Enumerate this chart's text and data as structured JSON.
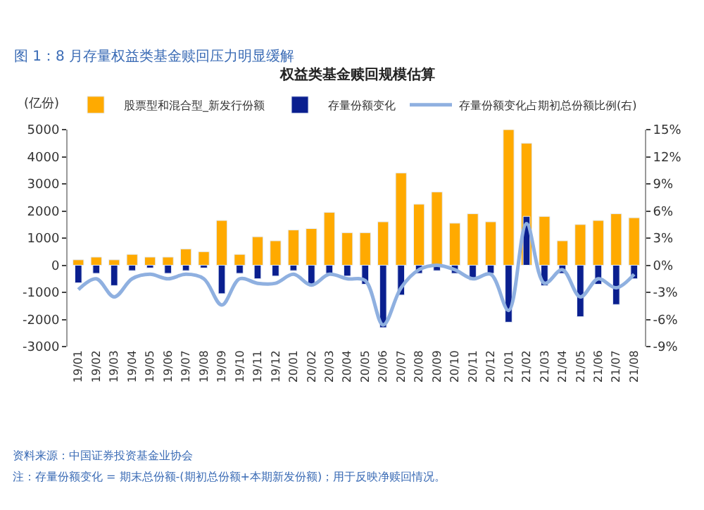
{
  "chart_data": {
    "type": "bar",
    "title": "图 1：8 月存量权益类基金赎回压力明显缓解",
    "subtitle": "权益类基金赎回规模估算",
    "ylabel": "(亿份)",
    "categories": [
      "19/01",
      "19/02",
      "19/03",
      "19/04",
      "19/05",
      "19/06",
      "19/07",
      "19/08",
      "19/09",
      "19/10",
      "19/11",
      "19/12",
      "20/01",
      "20/02",
      "20/03",
      "20/04",
      "20/05",
      "20/06",
      "20/07",
      "20/08",
      "20/09",
      "20/10",
      "20/11",
      "20/12",
      "21/01",
      "21/02",
      "21/03",
      "21/04",
      "21/05",
      "21/06",
      "21/07",
      "21/08"
    ],
    "series": [
      {
        "name": "股票型和混合型_新发行份额",
        "color": "#ffaa00",
        "values": [
          200,
          300,
          200,
          400,
          300,
          300,
          600,
          500,
          1650,
          400,
          1050,
          900,
          1300,
          1350,
          1950,
          1200,
          1200,
          1600,
          3400,
          2250,
          2700,
          1550,
          1900,
          1600,
          5000,
          4500,
          1800,
          900,
          1500,
          1650,
          1900,
          1750
        ]
      },
      {
        "name": "存量份额变化",
        "color": "#0a1f8f",
        "values": [
          -650,
          -300,
          -750,
          -200,
          -100,
          -300,
          -200,
          -100,
          -1050,
          -300,
          -500,
          -400,
          -200,
          -750,
          -300,
          -400,
          -700,
          -2300,
          -1100,
          -300,
          -200,
          -300,
          -550,
          -300,
          -2100,
          1800,
          -750,
          -300,
          -1900,
          -700,
          -1450,
          -500
        ]
      },
      {
        "name": "存量份额变化占期初总份额比例(右)",
        "color": "#8fb0e0",
        "type": "line",
        "axis": "y2",
        "values": [
          -2.7,
          -1.5,
          -3.5,
          -1.5,
          -1,
          -1.5,
          -1,
          -1.5,
          -4.4,
          -1.5,
          -2,
          -2,
          -1,
          -2.2,
          -1,
          -1.5,
          -1.7,
          -6.6,
          -2.5,
          -0.5,
          0,
          -0.5,
          -1.5,
          -1,
          -5,
          4.6,
          -2,
          -0.5,
          -3.5,
          -1.5,
          -2.5,
          -1
        ]
      }
    ],
    "ylim": [
      -3000,
      5000
    ],
    "yticks": [
      -3000,
      -2000,
      -1000,
      0,
      1000,
      2000,
      3000,
      4000,
      5000
    ],
    "y2lim": [
      -9,
      15
    ],
    "y2ticks": [
      {
        "value": -9,
        "label": "-9%"
      },
      {
        "value": -6,
        "label": "-6%"
      },
      {
        "value": -3,
        "label": "-3%"
      },
      {
        "value": 0,
        "label": "0%"
      },
      {
        "value": 3,
        "label": "3%"
      },
      {
        "value": 6,
        "label": "6%"
      },
      {
        "value": 9,
        "label": "9%"
      },
      {
        "value": 12,
        "label": "12%"
      },
      {
        "value": 15,
        "label": "15%"
      }
    ],
    "legend": "top",
    "annotations": [
      "资料来源：中国证券投资基金业协会",
      "注：存量份额变化 = 期末总份额-(期初总份额+本期新发份额)；用于反映净赎回情况。"
    ]
  }
}
